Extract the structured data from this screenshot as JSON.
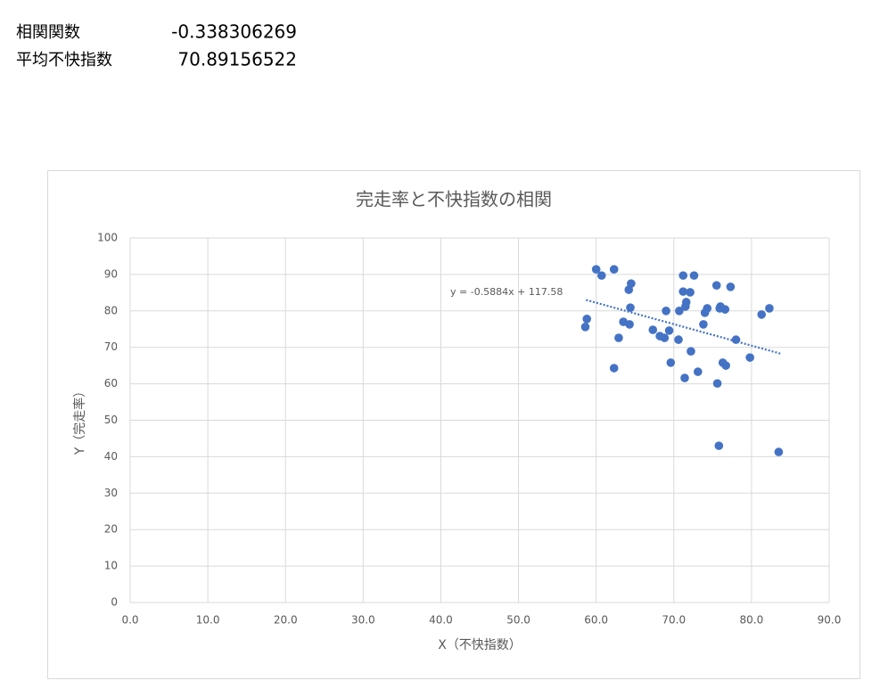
{
  "stats": [
    {
      "label": "相関関数",
      "value": -0.338306269
    },
    {
      "label": "平均不快指数",
      "value": 70.89156522
    }
  ],
  "chart_data": {
    "type": "scatter",
    "title": "完走率と不快指数の相関",
    "x_label": "X（不快指数）",
    "y_label": "Y（完走率）",
    "color": "#4472c4",
    "x": [
      60.0,
      60.7,
      62.3,
      64.5,
      64.2,
      64.4,
      58.8,
      58.6,
      63.5,
      64.3,
      62.9,
      62.3,
      67.3,
      68.2,
      68.8,
      69.4,
      69.0,
      70.7,
      71.2,
      72.6,
      71.2,
      72.1,
      71.6,
      71.5,
      70.6,
      69.6,
      72.2,
      71.4,
      73.1,
      73.8,
      74.3,
      74.0,
      75.5,
      76.0,
      75.9,
      76.6,
      77.3,
      78.0,
      76.3,
      76.7,
      75.6,
      75.8,
      79.8,
      81.3,
      82.3,
      83.5
    ],
    "values": [
      91.4,
      89.7,
      91.4,
      87.5,
      85.8,
      80.9,
      77.8,
      75.6,
      77.0,
      76.3,
      72.6,
      64.3,
      74.8,
      73.1,
      72.6,
      74.6,
      80.0,
      80.0,
      89.7,
      89.7,
      85.3,
      85.1,
      82.4,
      81.2,
      72.1,
      65.8,
      68.9,
      61.6,
      63.3,
      76.3,
      80.7,
      79.5,
      87.0,
      81.2,
      80.7,
      80.4,
      86.6,
      72.1,
      65.8,
      65.0,
      60.1,
      43.0,
      67.2,
      79.0,
      80.7,
      41.3
    ],
    "trendline": {
      "label": "y = -0.5884x + 117.58",
      "x": [
        58.7,
        83.7
      ],
      "y": [
        83.0,
        68.3
      ]
    },
    "xlim": [
      0,
      90
    ],
    "xticks": [
      {
        "value": 0,
        "label": "0.0"
      },
      {
        "value": 10,
        "label": "10.0"
      },
      {
        "value": 20,
        "label": "20.0"
      },
      {
        "value": 30,
        "label": "30.0"
      },
      {
        "value": 40,
        "label": "40.0"
      },
      {
        "value": 50,
        "label": "50.0"
      },
      {
        "value": 60,
        "label": "60.0"
      },
      {
        "value": 70,
        "label": "70.0"
      },
      {
        "value": 80,
        "label": "80.0"
      },
      {
        "value": 90,
        "label": "90.0"
      }
    ],
    "ylim": [
      0,
      100
    ],
    "yticks": [
      0,
      10,
      20,
      30,
      40,
      50,
      60,
      70,
      80,
      90,
      100
    ],
    "grid": true
  }
}
